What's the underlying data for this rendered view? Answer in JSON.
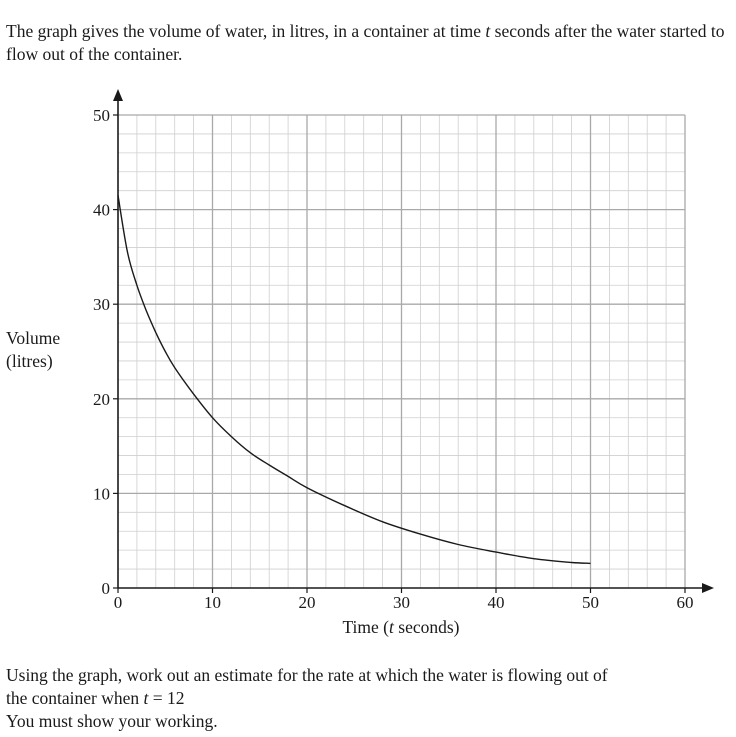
{
  "intro": {
    "part1": "The graph gives the volume of water, in litres, in a container at time ",
    "var": "t",
    "part2": " seconds after the water started to flow out of the container."
  },
  "question": {
    "line1": "Using the graph, work out an estimate for the rate at which the water is flowing out of",
    "line2_pre": "the container when ",
    "line2_var": "t",
    "line2_post": " = 12",
    "line3": "You must show your working."
  },
  "axes": {
    "ylabel_line1": "Volume",
    "ylabel_line2": "(litres)",
    "xlabel_pre": "Time (",
    "xlabel_var": "t",
    "xlabel_post": " seconds)"
  },
  "chart_data": {
    "type": "line",
    "xlim": [
      0,
      60
    ],
    "ylim": [
      0,
      50
    ],
    "x_ticks": [
      0,
      10,
      20,
      30,
      40,
      50,
      60
    ],
    "y_ticks": [
      0,
      10,
      20,
      30,
      40,
      50
    ],
    "x_tick_labels": [
      "0",
      "10",
      "20",
      "30",
      "40",
      "50",
      "60"
    ],
    "y_tick_labels": [
      "0",
      "10",
      "20",
      "30",
      "40",
      "50"
    ],
    "grid": true,
    "minor_grid_step": 2,
    "series": [
      {
        "points": [
          [
            0,
            41.5
          ],
          [
            1,
            35.5
          ],
          [
            2,
            32
          ],
          [
            3,
            29.3
          ],
          [
            4,
            27
          ],
          [
            5,
            25
          ],
          [
            6,
            23.3
          ],
          [
            8,
            20.5
          ],
          [
            10,
            18
          ],
          [
            12,
            16
          ],
          [
            14,
            14.3
          ],
          [
            16,
            13
          ],
          [
            18,
            11.8
          ],
          [
            20,
            10.6
          ],
          [
            24,
            8.7
          ],
          [
            28,
            7
          ],
          [
            32,
            5.7
          ],
          [
            36,
            4.6
          ],
          [
            40,
            3.8
          ],
          [
            44,
            3.1
          ],
          [
            48,
            2.7
          ],
          [
            50,
            2.6
          ]
        ]
      }
    ]
  }
}
